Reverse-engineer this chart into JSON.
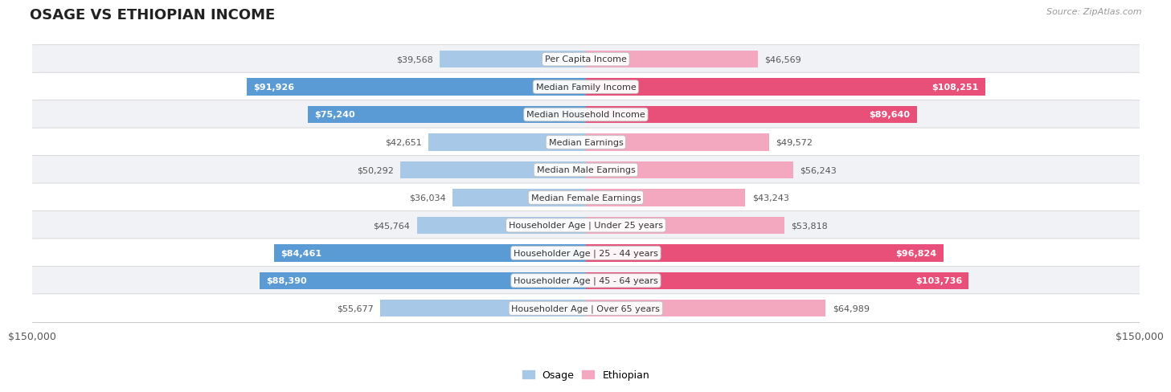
{
  "title": "OSAGE VS ETHIOPIAN INCOME",
  "source": "Source: ZipAtlas.com",
  "categories": [
    "Per Capita Income",
    "Median Family Income",
    "Median Household Income",
    "Median Earnings",
    "Median Male Earnings",
    "Median Female Earnings",
    "Householder Age | Under 25 years",
    "Householder Age | 25 - 44 years",
    "Householder Age | 45 - 64 years",
    "Householder Age | Over 65 years"
  ],
  "osage_values": [
    39568,
    91926,
    75240,
    42651,
    50292,
    36034,
    45764,
    84461,
    88390,
    55677
  ],
  "ethiopian_values": [
    46569,
    108251,
    89640,
    49572,
    56243,
    43243,
    53818,
    96824,
    103736,
    64989
  ],
  "osage_color_light": "#a8c8e8",
  "osage_color_dark": "#5b9bd5",
  "ethiopian_color_light": "#f4a8c0",
  "ethiopian_color_dark": "#e8507a",
  "bar_height": 0.62,
  "max_value": 150000,
  "bg_color": "#ffffff",
  "row_color_odd": "#f0f2f5",
  "row_color_even": "#ffffff",
  "label_color_outside": "#555555",
  "label_color_inside": "#ffffff",
  "highlight_threshold": 65000,
  "legend_osage": "Osage",
  "legend_ethiopian": "Ethiopian",
  "xlabel_left": "$150,000",
  "xlabel_right": "$150,000",
  "title_fontsize": 13,
  "source_fontsize": 8,
  "label_fontsize": 8,
  "cat_fontsize": 8
}
